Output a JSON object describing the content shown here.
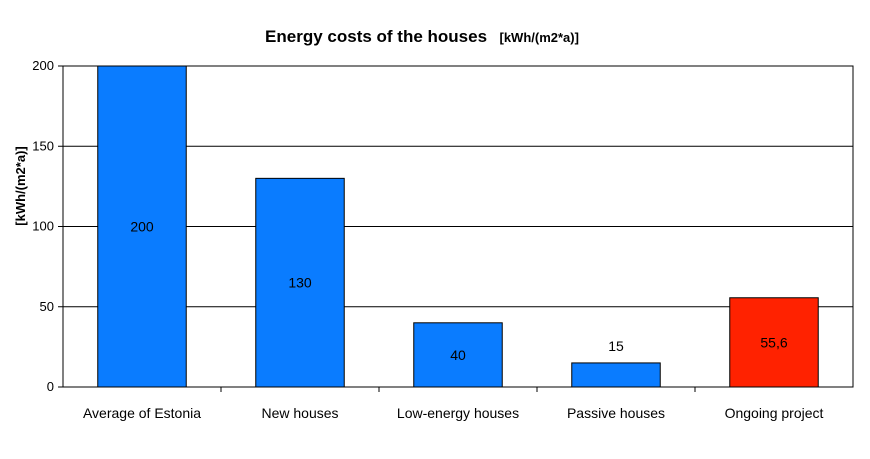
{
  "chart_data": {
    "type": "bar",
    "title": "Energy costs of the houses",
    "title_unit": "[kWh/(m2*a)]",
    "xlabel": "",
    "ylabel": "[kWh/(m2*a)]",
    "ylim": [
      0,
      200
    ],
    "yticks": [
      0,
      50,
      100,
      150,
      200
    ],
    "ytick_labels": [
      "0",
      "50",
      "100",
      "150",
      "200"
    ],
    "grid": true,
    "legend": "none",
    "categories": [
      "Average of Estonia",
      "New houses",
      "Low-energy houses",
      "Passive houses",
      "Ongoing project"
    ],
    "values": [
      200,
      130,
      40,
      15,
      55.6
    ],
    "data_labels": [
      "200",
      "130",
      "40",
      "15",
      "55,6"
    ],
    "bar_colors": [
      "#0a7cff",
      "#0a7cff",
      "#0a7cff",
      "#0a7cff",
      "#ff2200"
    ]
  }
}
